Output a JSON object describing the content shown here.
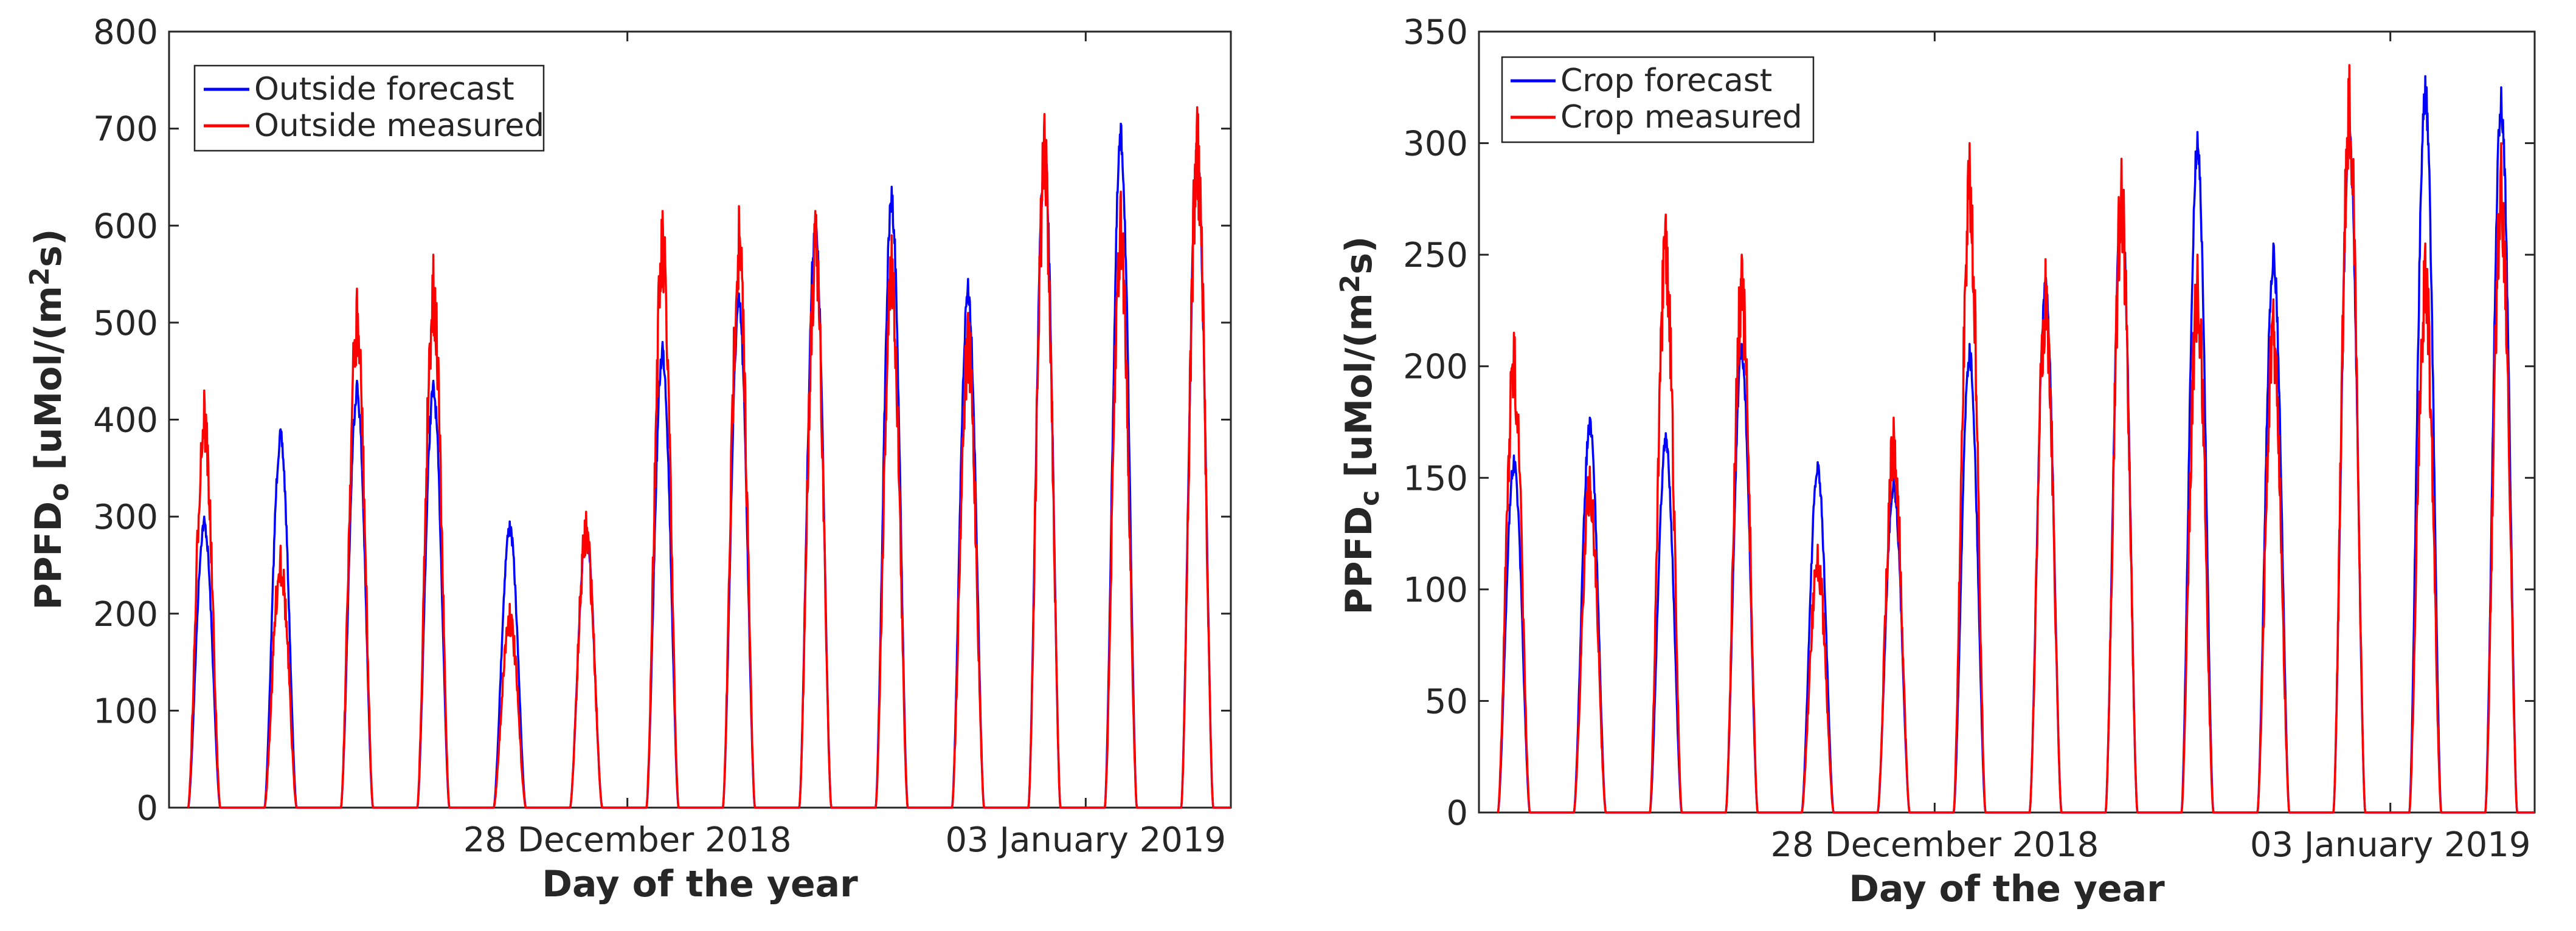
{
  "chart_data": [
    {
      "type": "line",
      "xlabel": "Day of the year",
      "ylabel": {
        "base": "PPFD",
        "subscript": "o",
        "unit_prefix": " [uMol/(m",
        "unit_sup": "2",
        "unit_suffix": "s)"
      },
      "ylim": [
        0,
        800
      ],
      "yticks": [
        0,
        100,
        200,
        300,
        400,
        500,
        600,
        700,
        800
      ],
      "xlim": [
        0,
        13.9
      ],
      "xtick_positions": [
        6.0,
        12.0
      ],
      "xtick_labels": [
        "28 December 2018",
        "03 January 2019"
      ],
      "legend_location": "top-left",
      "days_start_offset": 0.25,
      "days_spacing": 1.0,
      "series": [
        {
          "name": "Outside forecast",
          "color": "#0000ff",
          "peaks": [
            300,
            390,
            440,
            440,
            295,
            290,
            480,
            530,
            610,
            640,
            545,
            690,
            705,
            690
          ]
        },
        {
          "name": "Outside measured",
          "color": "#ff0000",
          "peaks": [
            430,
            270,
            535,
            570,
            210,
            305,
            615,
            620,
            615,
            590,
            510,
            715,
            635,
            722
          ]
        }
      ]
    },
    {
      "type": "line",
      "xlabel": "Day of the year",
      "ylabel": {
        "base": "PPFD",
        "subscript": "c",
        "unit_prefix": " [uMol/(m",
        "unit_sup": "2",
        "unit_suffix": "s)"
      },
      "ylim": [
        0,
        350
      ],
      "yticks": [
        0,
        50,
        100,
        150,
        200,
        250,
        300,
        350
      ],
      "xlim": [
        0,
        13.9
      ],
      "xtick_positions": [
        6.0,
        12.0
      ],
      "xtick_labels": [
        "28 December 2018",
        "03 January 2019"
      ],
      "legend_location": "top-left",
      "days_start_offset": 0.25,
      "days_spacing": 1.0,
      "series": [
        {
          "name": "Crop forecast",
          "color": "#0000ff",
          "peaks": [
            160,
            177,
            170,
            210,
            157,
            150,
            210,
            240,
            280,
            305,
            255,
            310,
            330,
            325
          ]
        },
        {
          "name": "Crop measured",
          "color": "#ff0000",
          "peaks": [
            215,
            155,
            268,
            250,
            120,
            177,
            300,
            248,
            293,
            250,
            230,
            335,
            255,
            300
          ]
        }
      ]
    }
  ]
}
